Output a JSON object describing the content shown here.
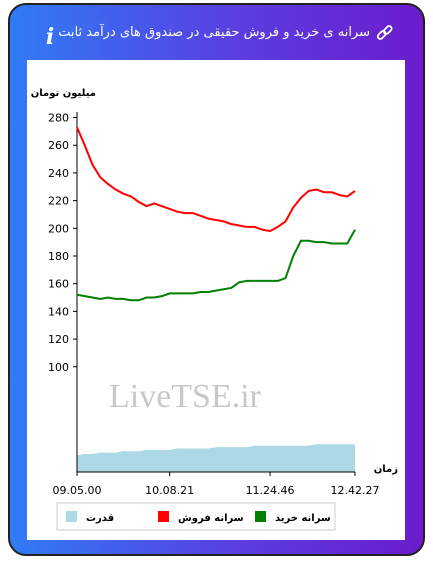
{
  "header": {
    "title": "سرانه ی خرید و فروش حقیقی در صندوق های درآمد ثابت",
    "info": "i"
  },
  "chart_data": {
    "type": "line",
    "y_label": "میلیون تومان",
    "x_label": "زمان",
    "watermark": "LiveTSE.ir",
    "categories": [
      "09.05.00",
      null,
      null,
      null,
      null,
      null,
      null,
      null,
      null,
      null,
      null,
      null,
      "10.08.21",
      null,
      null,
      null,
      null,
      null,
      null,
      null,
      null,
      null,
      null,
      null,
      null,
      "11.24.46",
      null,
      null,
      null,
      null,
      null,
      null,
      null,
      null,
      null,
      null,
      "12.42.27"
    ],
    "series": [
      {
        "name": "سرانه خرید",
        "color": "#008000",
        "values": [
          152,
          151,
          150,
          149,
          150,
          149,
          149,
          148,
          148,
          150,
          150,
          151,
          153,
          153,
          153,
          153,
          154,
          154,
          155,
          156,
          157,
          161,
          162,
          162,
          162,
          162,
          162,
          164,
          180,
          191,
          191,
          190,
          190,
          189,
          189,
          189,
          199
        ]
      },
      {
        "name": "سرانه فروش",
        "color": "#ff0000",
        "values": [
          273,
          260,
          246,
          237,
          232,
          228,
          225,
          223,
          219,
          216,
          218,
          216,
          214,
          212,
          211,
          211,
          209,
          207,
          206,
          205,
          203,
          202,
          201,
          201,
          199,
          198,
          201,
          205,
          215,
          222,
          227,
          228,
          226,
          226,
          224,
          223,
          227
        ]
      },
      {
        "name": "قدرت",
        "color": "#add8e6",
        "type": "area",
        "values": [
          36,
          37,
          37,
          38,
          38,
          38,
          39,
          39,
          39,
          40,
          40,
          40,
          40,
          41,
          41,
          41,
          41,
          41,
          42,
          42,
          42,
          42,
          42,
          43,
          43,
          43,
          43,
          43,
          43,
          43,
          43,
          44,
          44,
          44,
          44,
          44,
          44
        ]
      }
    ],
    "ylim": [
      24,
      284
    ],
    "yticks": [
      100,
      120,
      140,
      160,
      180,
      200,
      220,
      240,
      260,
      280
    ],
    "grid": false,
    "legend": "bottom"
  }
}
